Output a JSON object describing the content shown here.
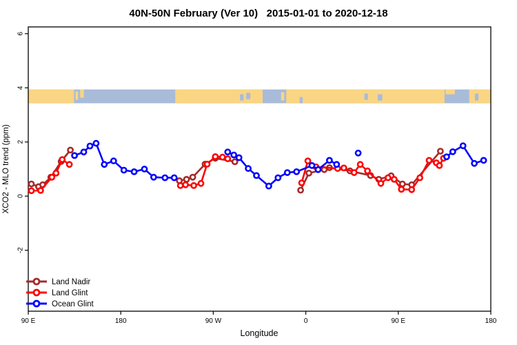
{
  "chart_data": {
    "type": "line",
    "title": "40N-50N February (Ver 10)   2015-01-01 to 2020-12-18",
    "xlabel": "Longitude",
    "ylabel": "XCO2 - MLO trend (ppm)",
    "x_axis": {
      "lim": [
        90,
        540
      ],
      "ticks": [
        {
          "pos": 90,
          "label": "90 E"
        },
        {
          "pos": 180,
          "label": "180"
        },
        {
          "pos": 270,
          "label": "90 W"
        },
        {
          "pos": 360,
          "label": "0"
        },
        {
          "pos": 450,
          "label": "90 E"
        },
        {
          "pos": 540,
          "label": "180"
        }
      ]
    },
    "y_axis": {
      "lim": [
        -4.25,
        6.25
      ],
      "ticks": [
        {
          "pos": -2,
          "label": "-2"
        },
        {
          "pos": 0,
          "label": "0"
        },
        {
          "pos": 2,
          "label": "2"
        },
        {
          "pos": 4,
          "label": "4"
        },
        {
          "pos": 6,
          "label": "6"
        }
      ]
    },
    "map_band": {
      "value_range": [
        3.43,
        3.94
      ],
      "ocean_color": "#A8BCDA",
      "land_color": "#FAD584",
      "land_segments": [
        [
          90,
          134.5
        ],
        [
          233,
          318
        ],
        [
          341,
          495
        ],
        [
          519,
          540
        ]
      ],
      "islands": [
        {
          "lon": [
            136,
            138.5
          ],
          "band": [
            0.15,
            0.75
          ]
        },
        {
          "lon": [
            140.5,
            144
          ],
          "band": [
            0.0,
            0.6
          ]
        },
        {
          "lon": [
            336,
            339
          ],
          "band": [
            0.2,
            0.8
          ]
        },
        {
          "lon": [
            496,
            505
          ],
          "band": [
            0.0,
            0.35
          ]
        }
      ],
      "water_specks": [
        {
          "lon": [
            296,
            299.5
          ],
          "band": [
            0.35,
            0.8
          ]
        },
        {
          "lon": [
            302,
            306
          ],
          "band": [
            0.25,
            0.7
          ]
        },
        {
          "lon": [
            354,
            357
          ],
          "band": [
            0.55,
            1.0
          ]
        },
        {
          "lon": [
            417,
            420.5
          ],
          "band": [
            0.3,
            0.75
          ]
        },
        {
          "lon": [
            430,
            434.5
          ],
          "band": [
            0.35,
            0.8
          ]
        },
        {
          "lon": [
            524.5,
            528
          ],
          "band": [
            0.3,
            0.8
          ]
        }
      ]
    },
    "series": [
      {
        "name": "Land Nadir",
        "color": "#A52A2A",
        "segments": [
          [
            [
              93,
              0.45
            ],
            [
              100,
              0.35
            ],
            [
              104,
              0.42
            ],
            [
              112,
              0.7
            ],
            [
              122,
              1.28
            ],
            [
              131,
              1.7
            ]
          ],
          [
            [
              237,
              0.57
            ],
            [
              244,
              0.62
            ],
            [
              250,
              0.7
            ],
            [
              262,
              1.18
            ],
            [
              272,
              1.4
            ],
            [
              291,
              1.27
            ]
          ],
          [
            [
              355,
              0.22
            ],
            [
              363,
              0.85
            ],
            [
              378,
              0.98
            ],
            [
              383,
              1.05
            ],
            [
              403,
              0.93
            ],
            [
              423,
              0.76
            ],
            [
              431,
              0.62
            ],
            [
              443,
              0.75
            ],
            [
              454,
              0.45
            ],
            [
              463,
              0.42
            ],
            [
              491,
              1.66
            ]
          ]
        ]
      },
      {
        "name": "Land Glint",
        "color": "#FF0000",
        "segments": [
          [
            [
              93,
              0.2
            ],
            [
              102,
              0.21
            ],
            [
              113,
              0.7
            ],
            [
              117,
              0.85
            ],
            [
              123,
              1.35
            ],
            [
              130,
              1.17
            ]
          ],
          [
            [
              238,
              0.39
            ],
            [
              243,
              0.42
            ],
            [
              251,
              0.39
            ],
            [
              258,
              0.47
            ],
            [
              264,
              1.18
            ],
            [
              272,
              1.46
            ],
            [
              279,
              1.44
            ],
            [
              284,
              1.38
            ]
          ],
          [
            [
              356,
              0.49
            ],
            [
              362,
              1.3
            ],
            [
              370,
              1.08
            ],
            [
              391,
              1.02
            ],
            [
              397,
              1.04
            ],
            [
              407,
              0.87
            ],
            [
              413,
              1.17
            ],
            [
              420,
              0.93
            ],
            [
              433,
              0.47
            ],
            [
              440,
              0.68
            ],
            [
              446,
              0.62
            ],
            [
              453,
              0.25
            ],
            [
              463,
              0.24
            ],
            [
              471,
              0.68
            ],
            [
              480,
              1.32
            ],
            [
              487,
              1.23
            ],
            [
              490,
              1.13
            ],
            [
              494,
              1.4
            ]
          ]
        ]
      },
      {
        "name": "Ocean Glint",
        "color": "#0000FF",
        "segments": [
          [
            [
              135,
              1.5
            ],
            [
              144,
              1.63
            ],
            [
              150,
              1.85
            ],
            [
              156,
              1.95
            ],
            [
              164,
              1.17
            ],
            [
              173,
              1.3
            ],
            [
              183,
              0.96
            ],
            [
              193,
              0.9
            ],
            [
              203,
              1.0
            ],
            [
              212,
              0.7
            ],
            [
              223,
              0.68
            ],
            [
              232,
              0.68
            ]
          ],
          [
            [
              284,
              1.63
            ],
            [
              290,
              1.52
            ],
            [
              295,
              1.42
            ],
            [
              304,
              1.02
            ],
            [
              312,
              0.76
            ],
            [
              324,
              0.37
            ],
            [
              333,
              0.68
            ],
            [
              342,
              0.87
            ],
            [
              351,
              0.9
            ],
            [
              366,
              1.13
            ],
            [
              372,
              0.98
            ],
            [
              383,
              1.32
            ],
            [
              390,
              1.17
            ]
          ],
          [
            [
              411,
              1.59
            ]
          ],
          [
            [
              497,
              1.45
            ],
            [
              503,
              1.64
            ],
            [
              513,
              1.86
            ],
            [
              524,
              1.21
            ],
            [
              533,
              1.32
            ]
          ]
        ]
      }
    ],
    "legend": {
      "items": [
        "Land Nadir",
        "Land Glint",
        "Ocean Glint"
      ]
    }
  }
}
